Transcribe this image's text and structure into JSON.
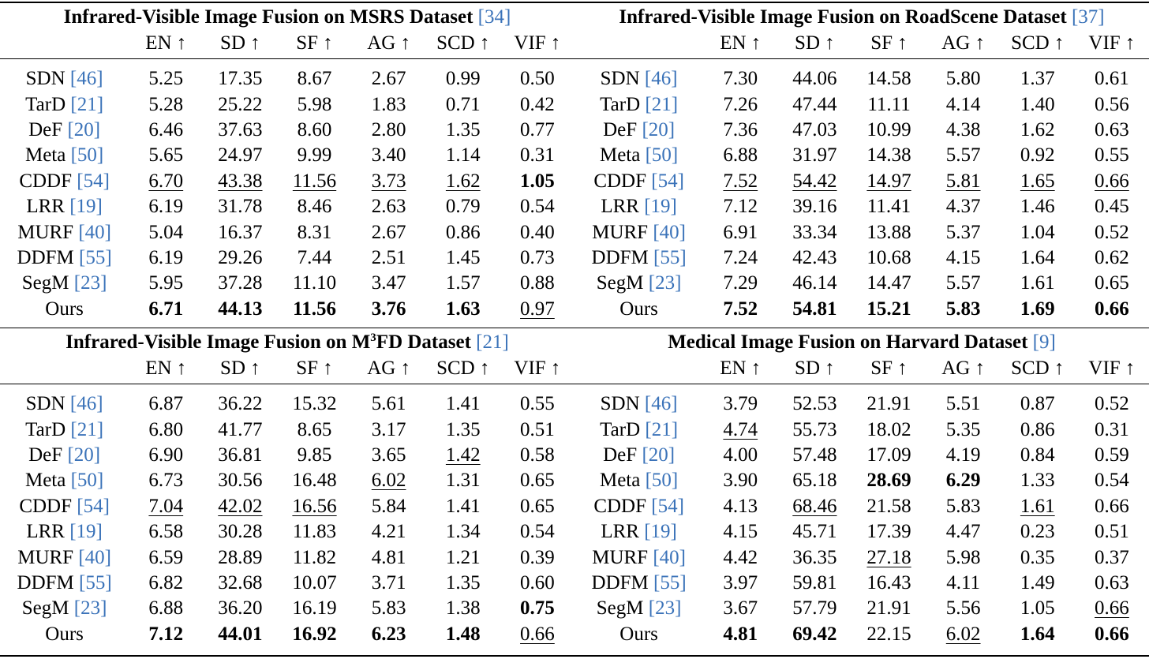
{
  "columns": [
    "EN ↑",
    "SD ↑",
    "SF ↑",
    "AG ↑",
    "SCD ↑",
    "VIF ↑"
  ],
  "colors": {
    "citation": "#3b73b9",
    "text": "#000000"
  },
  "tables": [
    {
      "title": "Infrared-Visible Image Fusion on MSRS Dataset",
      "title_ref": "[34]",
      "rows": [
        {
          "method": "SDN",
          "ref": "[46]",
          "values": [
            "5.25",
            "17.35",
            "8.67",
            "2.67",
            "0.99",
            "0.50"
          ],
          "style": [
            "",
            "",
            "",
            "",
            "",
            ""
          ]
        },
        {
          "method": "TarD",
          "ref": "[21]",
          "values": [
            "5.28",
            "25.22",
            "5.98",
            "1.83",
            "0.71",
            "0.42"
          ],
          "style": [
            "",
            "",
            "",
            "",
            "",
            ""
          ]
        },
        {
          "method": "DeF",
          "ref": "[20]",
          "values": [
            "6.46",
            "37.63",
            "8.60",
            "2.80",
            "1.35",
            "0.77"
          ],
          "style": [
            "",
            "",
            "",
            "",
            "",
            ""
          ]
        },
        {
          "method": "Meta",
          "ref": "[50]",
          "values": [
            "5.65",
            "24.97",
            "9.99",
            "3.40",
            "1.14",
            "0.31"
          ],
          "style": [
            "",
            "",
            "",
            "",
            "",
            ""
          ]
        },
        {
          "method": "CDDF",
          "ref": "[54]",
          "values": [
            "6.70",
            "43.38",
            "11.56",
            "3.73",
            "1.62",
            "1.05"
          ],
          "style": [
            "u",
            "u",
            "u",
            "u",
            "u",
            "b"
          ]
        },
        {
          "method": "LRR",
          "ref": "[19]",
          "values": [
            "6.19",
            "31.78",
            "8.46",
            "2.63",
            "0.79",
            "0.54"
          ],
          "style": [
            "",
            "",
            "",
            "",
            "",
            ""
          ]
        },
        {
          "method": "MURF",
          "ref": "[40]",
          "values": [
            "5.04",
            "16.37",
            "8.31",
            "2.67",
            "0.86",
            "0.40"
          ],
          "style": [
            "",
            "",
            "",
            "",
            "",
            ""
          ]
        },
        {
          "method": "DDFM",
          "ref": "[55]",
          "values": [
            "6.19",
            "29.26",
            "7.44",
            "2.51",
            "1.45",
            "0.73"
          ],
          "style": [
            "",
            "",
            "",
            "",
            "",
            ""
          ]
        },
        {
          "method": "SegM",
          "ref": "[23]",
          "values": [
            "5.95",
            "37.28",
            "11.10",
            "3.47",
            "1.57",
            "0.88"
          ],
          "style": [
            "",
            "",
            "",
            "",
            "",
            ""
          ]
        },
        {
          "method": "Ours",
          "ref": "",
          "values": [
            "6.71",
            "44.13",
            "11.56",
            "3.76",
            "1.63",
            "0.97"
          ],
          "style": [
            "b",
            "b",
            "b",
            "b",
            "b",
            "u"
          ]
        }
      ]
    },
    {
      "title": "Infrared-Visible Image Fusion on RoadScene Dataset",
      "title_ref": "[37]",
      "rows": [
        {
          "method": "SDN",
          "ref": "[46]",
          "values": [
            "7.30",
            "44.06",
            "14.58",
            "5.80",
            "1.37",
            "0.61"
          ],
          "style": [
            "",
            "",
            "",
            "",
            "",
            ""
          ]
        },
        {
          "method": "TarD",
          "ref": "[21]",
          "values": [
            "7.26",
            "47.44",
            "11.11",
            "4.14",
            "1.40",
            "0.56"
          ],
          "style": [
            "",
            "",
            "",
            "",
            "",
            ""
          ]
        },
        {
          "method": "DeF",
          "ref": "[20]",
          "values": [
            "7.36",
            "47.03",
            "10.99",
            "4.38",
            "1.62",
            "0.63"
          ],
          "style": [
            "",
            "",
            "",
            "",
            "",
            ""
          ]
        },
        {
          "method": "Meta",
          "ref": "[50]",
          "values": [
            "6.88",
            "31.97",
            "14.38",
            "5.57",
            "0.92",
            "0.55"
          ],
          "style": [
            "",
            "",
            "",
            "",
            "",
            ""
          ]
        },
        {
          "method": "CDDF",
          "ref": "[54]",
          "values": [
            "7.52",
            "54.42",
            "14.97",
            "5.81",
            "1.65",
            "0.66"
          ],
          "style": [
            "u",
            "u",
            "u",
            "u",
            "u",
            "u"
          ]
        },
        {
          "method": "LRR",
          "ref": "[19]",
          "values": [
            "7.12",
            "39.16",
            "11.41",
            "4.37",
            "1.46",
            "0.45"
          ],
          "style": [
            "",
            "",
            "",
            "",
            "",
            ""
          ]
        },
        {
          "method": "MURF",
          "ref": "[40]",
          "values": [
            "6.91",
            "33.34",
            "13.88",
            "5.37",
            "1.04",
            "0.52"
          ],
          "style": [
            "",
            "",
            "",
            "",
            "",
            ""
          ]
        },
        {
          "method": "DDFM",
          "ref": "[55]",
          "values": [
            "7.24",
            "42.43",
            "10.68",
            "4.15",
            "1.64",
            "0.62"
          ],
          "style": [
            "",
            "",
            "",
            "",
            "",
            ""
          ]
        },
        {
          "method": "SegM",
          "ref": "[23]",
          "values": [
            "7.29",
            "46.14",
            "14.47",
            "5.57",
            "1.61",
            "0.65"
          ],
          "style": [
            "",
            "",
            "",
            "",
            "",
            ""
          ]
        },
        {
          "method": "Ours",
          "ref": "",
          "values": [
            "7.52",
            "54.81",
            "15.21",
            "5.83",
            "1.69",
            "0.66"
          ],
          "style": [
            "b",
            "b",
            "b",
            "b",
            "b",
            "b"
          ]
        }
      ]
    },
    {
      "title_pre": "Infrared-Visible Image Fusion on M",
      "title_sup": "3",
      "title_post": "FD Dataset",
      "title_ref": "[21]",
      "rows": [
        {
          "method": "SDN",
          "ref": "[46]",
          "values": [
            "6.87",
            "36.22",
            "15.32",
            "5.61",
            "1.41",
            "0.55"
          ],
          "style": [
            "",
            "",
            "",
            "",
            "",
            ""
          ]
        },
        {
          "method": "TarD",
          "ref": "[21]",
          "values": [
            "6.80",
            "41.77",
            "8.65",
            "3.17",
            "1.35",
            "0.51"
          ],
          "style": [
            "",
            "",
            "",
            "",
            "",
            ""
          ]
        },
        {
          "method": "DeF",
          "ref": "[20]",
          "values": [
            "6.90",
            "36.81",
            "9.85",
            "3.65",
            "1.42",
            "0.58"
          ],
          "style": [
            "",
            "",
            "",
            "",
            "u",
            ""
          ]
        },
        {
          "method": "Meta",
          "ref": "[50]",
          "values": [
            "6.73",
            "30.56",
            "16.48",
            "6.02",
            "1.31",
            "0.65"
          ],
          "style": [
            "",
            "",
            "",
            "u",
            "",
            ""
          ]
        },
        {
          "method": "CDDF",
          "ref": "[54]",
          "values": [
            "7.04",
            "42.02",
            "16.56",
            "5.84",
            "1.41",
            "0.65"
          ],
          "style": [
            "u",
            "u",
            "u",
            "",
            "",
            ""
          ]
        },
        {
          "method": "LRR",
          "ref": "[19]",
          "values": [
            "6.58",
            "30.28",
            "11.83",
            "4.21",
            "1.34",
            "0.54"
          ],
          "style": [
            "",
            "",
            "",
            "",
            "",
            ""
          ]
        },
        {
          "method": "MURF",
          "ref": "[40]",
          "values": [
            "6.59",
            "28.89",
            "11.82",
            "4.81",
            "1.21",
            "0.39"
          ],
          "style": [
            "",
            "",
            "",
            "",
            "",
            ""
          ]
        },
        {
          "method": "DDFM",
          "ref": "[55]",
          "values": [
            "6.82",
            "32.68",
            "10.07",
            "3.71",
            "1.35",
            "0.60"
          ],
          "style": [
            "",
            "",
            "",
            "",
            "",
            ""
          ]
        },
        {
          "method": "SegM",
          "ref": "[23]",
          "values": [
            "6.88",
            "36.20",
            "16.19",
            "5.83",
            "1.38",
            "0.75"
          ],
          "style": [
            "",
            "",
            "",
            "",
            "",
            "b"
          ]
        },
        {
          "method": "Ours",
          "ref": "",
          "values": [
            "7.12",
            "44.01",
            "16.92",
            "6.23",
            "1.48",
            "0.66"
          ],
          "style": [
            "b",
            "b",
            "b",
            "b",
            "b",
            "u"
          ]
        }
      ]
    },
    {
      "title": "Medical Image Fusion on Harvard Dataset",
      "title_ref": "[9]",
      "rows": [
        {
          "method": "SDN",
          "ref": "[46]",
          "values": [
            "3.79",
            "52.53",
            "21.91",
            "5.51",
            "0.87",
            "0.52"
          ],
          "style": [
            "",
            "",
            "",
            "",
            "",
            ""
          ]
        },
        {
          "method": "TarD",
          "ref": "[21]",
          "values": [
            "4.74",
            "55.73",
            "18.02",
            "5.35",
            "0.86",
            "0.31"
          ],
          "style": [
            "u",
            "",
            "",
            "",
            "",
            ""
          ]
        },
        {
          "method": "DeF",
          "ref": "[20]",
          "values": [
            "4.00",
            "57.48",
            "17.09",
            "4.19",
            "0.84",
            "0.59"
          ],
          "style": [
            "",
            "",
            "",
            "",
            "",
            ""
          ]
        },
        {
          "method": "Meta",
          "ref": "[50]",
          "values": [
            "3.90",
            "65.18",
            "28.69",
            "6.29",
            "1.33",
            "0.54"
          ],
          "style": [
            "",
            "",
            "b",
            "b",
            "",
            ""
          ]
        },
        {
          "method": "CDDF",
          "ref": "[54]",
          "values": [
            "4.13",
            "68.46",
            "21.58",
            "5.83",
            "1.61",
            "0.66"
          ],
          "style": [
            "",
            "u",
            "",
            "",
            "u",
            ""
          ]
        },
        {
          "method": "LRR",
          "ref": "[19]",
          "values": [
            "4.15",
            "45.71",
            "17.39",
            "4.47",
            "0.23",
            "0.51"
          ],
          "style": [
            "",
            "",
            "",
            "",
            "",
            ""
          ]
        },
        {
          "method": "MURF",
          "ref": "[40]",
          "values": [
            "4.42",
            "36.35",
            "27.18",
            "5.98",
            "0.35",
            "0.37"
          ],
          "style": [
            "",
            "",
            "u",
            "",
            "",
            ""
          ]
        },
        {
          "method": "DDFM",
          "ref": "[55]",
          "values": [
            "3.97",
            "59.81",
            "16.43",
            "4.11",
            "1.49",
            "0.63"
          ],
          "style": [
            "",
            "",
            "",
            "",
            "",
            ""
          ]
        },
        {
          "method": "SegM",
          "ref": "[23]",
          "values": [
            "3.67",
            "57.79",
            "21.91",
            "5.56",
            "1.05",
            "0.66"
          ],
          "style": [
            "",
            "",
            "",
            "",
            "",
            "u"
          ]
        },
        {
          "method": "Ours",
          "ref": "",
          "values": [
            "4.81",
            "69.42",
            "22.15",
            "6.02",
            "1.64",
            "0.66"
          ],
          "style": [
            "b",
            "b",
            "",
            "u",
            "b",
            "b"
          ]
        }
      ]
    }
  ]
}
